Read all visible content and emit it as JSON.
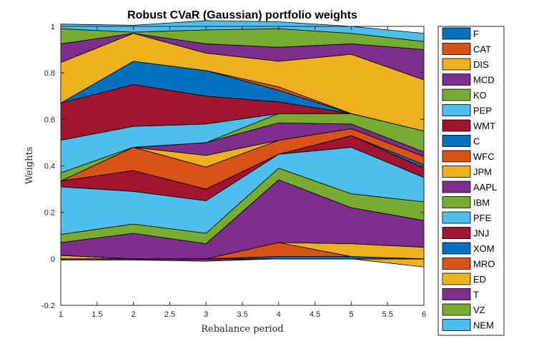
{
  "chart_data": {
    "type": "area",
    "title": "Robust CVaR (Gaussian) portfolio weights",
    "xlabel": "Rebalance period",
    "ylabel": "Weights",
    "x": [
      1,
      2,
      3,
      4,
      5,
      6
    ],
    "xlim": [
      1,
      6
    ],
    "ylim": [
      -0.2,
      1
    ],
    "xticks": [
      1,
      1.5,
      2,
      2.5,
      3,
      3.5,
      4,
      4.5,
      5,
      5.5,
      6
    ],
    "yticks": [
      -0.2,
      0,
      0.2,
      0.4,
      0.6,
      0.8,
      1
    ],
    "grid": false,
    "legend_position": "outside-right",
    "series": [
      {
        "name": "F",
        "color": "#0072BD",
        "values": [
          0,
          0,
          0,
          0,
          0,
          0
        ]
      },
      {
        "name": "CAT",
        "color": "#D95319",
        "values": [
          0,
          0,
          0,
          0,
          0,
          0
        ]
      },
      {
        "name": "DIS",
        "color": "#EDB120",
        "values": [
          0.015,
          0,
          0,
          0,
          0,
          -0.035
        ]
      },
      {
        "name": "MCD",
        "color": "#7E2F8E",
        "values": [
          -0.005,
          -0.005,
          -0.01,
          0,
          0,
          0
        ]
      },
      {
        "name": "KO",
        "color": "#77AC30",
        "values": [
          0,
          0,
          0,
          0,
          0,
          0
        ]
      },
      {
        "name": "PEP",
        "color": "#4DBEEE",
        "values": [
          0,
          0,
          0,
          0,
          0,
          0
        ]
      },
      {
        "name": "WMT",
        "color": "#A2142F",
        "values": [
          0,
          0,
          0,
          0,
          0,
          0
        ]
      },
      {
        "name": "C",
        "color": "#0072BD",
        "values": [
          0,
          0,
          0,
          0.01,
          0.01,
          0
        ]
      },
      {
        "name": "WFC",
        "color": "#D95319",
        "values": [
          0,
          0,
          0,
          0.06,
          0,
          0
        ]
      },
      {
        "name": "JPM",
        "color": "#EDB120",
        "values": [
          0,
          0,
          0,
          0,
          0.055,
          0.05
        ]
      },
      {
        "name": "AAPL",
        "color": "#7E2F8E",
        "values": [
          0.055,
          0.11,
          0.065,
          0.27,
          0.155,
          0.115
        ]
      },
      {
        "name": "IBM",
        "color": "#77AC30",
        "values": [
          0.035,
          0.04,
          0.045,
          0.05,
          0.06,
          0.08
        ]
      },
      {
        "name": "PFE",
        "color": "#4DBEEE",
        "values": [
          0.205,
          0.14,
          0.14,
          0.06,
          0.2,
          0.105
        ]
      },
      {
        "name": "JNJ",
        "color": "#A2142F",
        "values": [
          0.025,
          0.09,
          0.05,
          0,
          0.05,
          0.04
        ]
      },
      {
        "name": "XOM",
        "color": "#0072BD",
        "values": [
          0,
          0,
          0,
          0,
          0,
          0.015
        ]
      },
      {
        "name": "MRO",
        "color": "#D95319",
        "values": [
          0,
          0.1,
          0.095,
          0.06,
          0.03,
          0.035
        ]
      },
      {
        "name": "ED",
        "color": "#EDB120",
        "values": [
          0,
          0,
          0.05,
          0,
          0,
          0
        ]
      },
      {
        "name": "T",
        "color": "#7E2F8E",
        "values": [
          0,
          0,
          0.055,
          0.075,
          0.02,
          0.02
        ]
      },
      {
        "name": "VZ",
        "color": "#77AC30",
        "values": [
          0.035,
          0,
          0,
          0.04,
          0.045,
          0.09
        ]
      },
      {
        "name": "NEM",
        "color": "#4DBEEE",
        "values": [
          0.14,
          0.09,
          0.08,
          0,
          0,
          0
        ]
      },
      {
        "name": "F",
        "color": "#A2142F",
        "values": [
          0.16,
          0.18,
          0.12,
          0.05,
          0,
          0
        ]
      },
      {
        "name": "CAT",
        "color": "#0072BD",
        "values": [
          0,
          0.1,
          0.11,
          0.05,
          0,
          0
        ]
      },
      {
        "name": "DIS",
        "color": "#D95319",
        "values": [
          0,
          0,
          0,
          0.015,
          0,
          0
        ]
      },
      {
        "name": "MCD",
        "color": "#EDB120",
        "values": [
          0.175,
          0.12,
          0.075,
          0.11,
          0.255,
          0.22
        ]
      },
      {
        "name": "KO",
        "color": "#7E2F8E",
        "values": [
          0.08,
          0,
          0.04,
          0.06,
          0.045,
          0.13
        ]
      },
      {
        "name": "PEP",
        "color": "#77AC30",
        "values": [
          0.065,
          0.005,
          0.06,
          0.08,
          0.045,
          0.035
        ]
      },
      {
        "name": "WMT",
        "color": "#4DBEEE",
        "values": [
          0.02,
          0.03,
          0.04,
          0.03,
          0.03,
          0.035
        ]
      }
    ]
  },
  "legend": {
    "entries": [
      {
        "label": "F",
        "color": "#0072BD"
      },
      {
        "label": "CAT",
        "color": "#D95319"
      },
      {
        "label": "DIS",
        "color": "#EDB120"
      },
      {
        "label": "MCD",
        "color": "#7E2F8E"
      },
      {
        "label": "KO",
        "color": "#77AC30"
      },
      {
        "label": "PEP",
        "color": "#4DBEEE"
      },
      {
        "label": "WMT",
        "color": "#A2142F"
      },
      {
        "label": "C",
        "color": "#0072BD"
      },
      {
        "label": "WFC",
        "color": "#D95319"
      },
      {
        "label": "JPM",
        "color": "#EDB120"
      },
      {
        "label": "AAPL",
        "color": "#7E2F8E"
      },
      {
        "label": "IBM",
        "color": "#77AC30"
      },
      {
        "label": "PFE",
        "color": "#4DBEEE"
      },
      {
        "label": "JNJ",
        "color": "#A2142F"
      },
      {
        "label": "XOM",
        "color": "#0072BD"
      },
      {
        "label": "MRO",
        "color": "#D95319"
      },
      {
        "label": "ED",
        "color": "#EDB120"
      },
      {
        "label": "T",
        "color": "#7E2F8E"
      },
      {
        "label": "VZ",
        "color": "#77AC30"
      },
      {
        "label": "NEM",
        "color": "#4DBEEE"
      }
    ]
  }
}
